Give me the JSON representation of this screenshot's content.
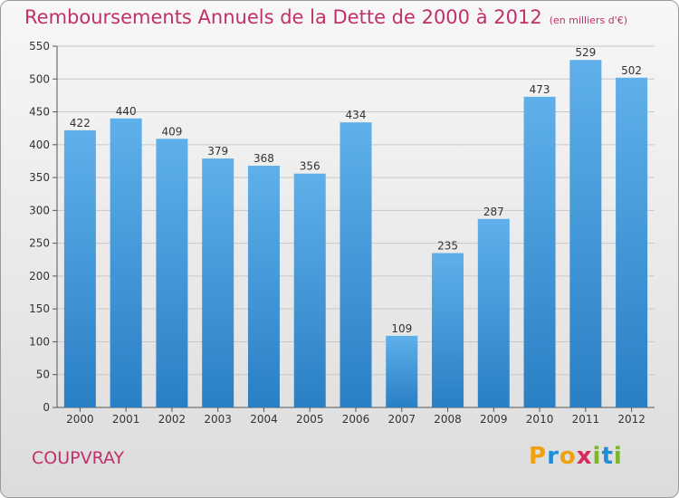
{
  "title": "Remboursements Annuels de la Dette de 2000 à 2012",
  "subtitle": "(en milliers d'€)",
  "commune": "COUPVRAY",
  "logo_text": "Proxiti",
  "colors": {
    "accent": "#c0306a",
    "bar_top": "#5fb0ea",
    "bar_bottom": "#2a7fc4"
  },
  "chart_data": {
    "type": "bar",
    "categories": [
      "2000",
      "2001",
      "2002",
      "2003",
      "2004",
      "2005",
      "2006",
      "2007",
      "2008",
      "2009",
      "2010",
      "2011",
      "2012"
    ],
    "values": [
      422,
      440,
      409,
      379,
      368,
      356,
      434,
      109,
      235,
      287,
      473,
      529,
      502
    ],
    "ylim": [
      0,
      550
    ],
    "yticks": [
      0,
      50,
      100,
      150,
      200,
      250,
      300,
      350,
      400,
      450,
      500,
      550
    ],
    "grid": true,
    "data_labels": true
  }
}
